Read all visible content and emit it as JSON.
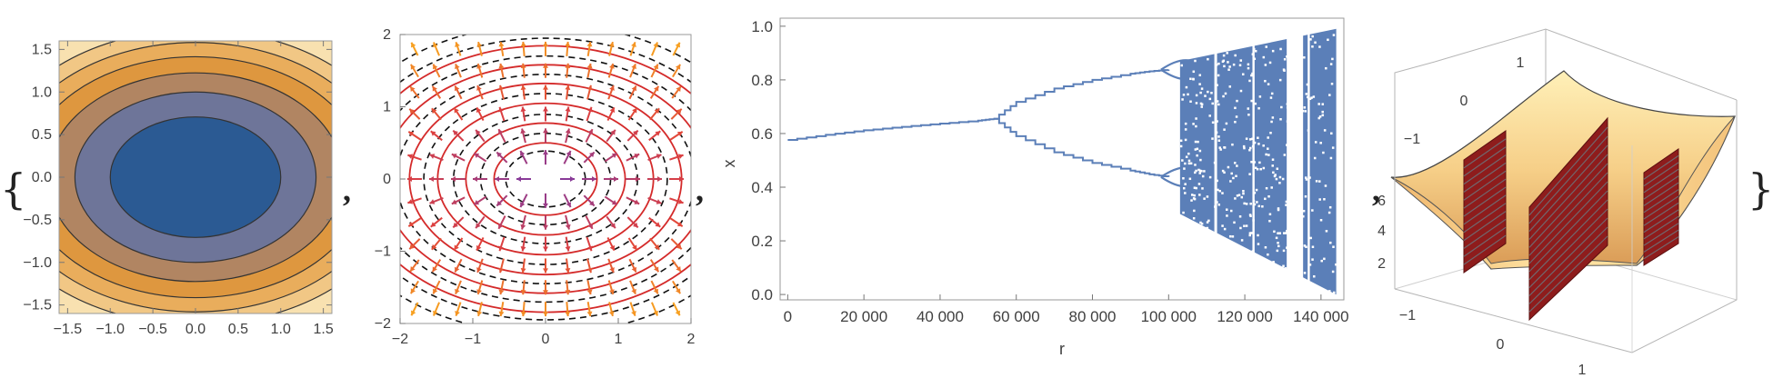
{
  "list_delimiters": {
    "open": "{",
    "close": "}",
    "separator": ","
  },
  "chart_data": [
    {
      "type": "contour",
      "function": "x^2 + 2 y^2",
      "xlim": [
        -1.6,
        1.6
      ],
      "ylim": [
        -1.6,
        1.6
      ],
      "xticks": [
        -1.5,
        -1.0,
        -0.5,
        0.0,
        0.5,
        1.0,
        1.5
      ],
      "yticks": [
        -1.5,
        -1.0,
        -0.5,
        0.0,
        0.5,
        1.0,
        1.5
      ],
      "xtick_labels": [
        "−1.5",
        "−1.0",
        "−0.5",
        "0.0",
        "0.5",
        "1.0",
        "1.5"
      ],
      "ytick_labels": [
        "−1.5",
        "−1.0",
        "−0.5",
        "0.0",
        "0.5",
        "1.0",
        "1.5"
      ],
      "levels": [
        1,
        2,
        3,
        4,
        5,
        6
      ],
      "fill_colors": [
        "#2b5a93",
        "#6e7599",
        "#b18562",
        "#de973f",
        "#e9ad5c",
        "#f1c785",
        "#f8e1b0"
      ],
      "line_color": "#333333"
    },
    {
      "type": "vector_field_with_contours",
      "field": "gradient of x^2 + 2 y^2",
      "xlim": [
        -2,
        2
      ],
      "ylim": [
        -2,
        2
      ],
      "xticks": [
        -2,
        -1,
        0,
        1,
        2
      ],
      "yticks": [
        -2,
        -1,
        0,
        1,
        2
      ],
      "xtick_labels": [
        "−2",
        "−1",
        "0",
        "1",
        "2"
      ],
      "ytick_labels": [
        "−2",
        "−1",
        "0",
        "1",
        "2"
      ],
      "solid_contour_levels": [
        0.5,
        1.2,
        2.2,
        3.5,
        5,
        6.8
      ],
      "dashed_contour_levels": [
        0.3,
        0.8,
        1.6,
        2.8,
        4.2,
        5.8,
        7.6,
        9.2
      ],
      "arrow_colors": {
        "low": "#7a3aa8",
        "mid": "#e0403c",
        "high": "#f7a020"
      },
      "contour_colors": {
        "solid": "#d42a2a",
        "dashed": "#111111"
      }
    },
    {
      "type": "scatter",
      "title": "",
      "xlabel": "r",
      "ylabel": "x",
      "xlim": [
        -2000,
        146000
      ],
      "ylim": [
        -0.02,
        1.03
      ],
      "xticks": [
        0,
        20000,
        40000,
        60000,
        80000,
        100000,
        120000,
        140000
      ],
      "xtick_labels": [
        "0",
        "20 000",
        "40 000",
        "60 000",
        "80 000",
        "100 000",
        "120 000",
        "140 000"
      ],
      "yticks": [
        0.0,
        0.2,
        0.4,
        0.6,
        0.8,
        1.0
      ],
      "ytick_labels": [
        "0.0",
        "0.2",
        "0.4",
        "0.6",
        "0.8",
        "1.0"
      ],
      "series": [
        {
          "color": "#5b7fb8",
          "branches": [
            {
              "r": [
                0,
                10000,
                20000,
                30000,
                40000,
                50000,
                54000
              ],
              "x": [
                0.576,
                0.595,
                0.612,
                0.625,
                0.637,
                0.648,
                0.655
              ]
            },
            {
              "r": [
                54000,
                60000,
                70000,
                80000,
                90000,
                95000,
                100000
              ],
              "x": [
                0.655,
                0.718,
                0.768,
                0.8,
                0.823,
                0.832,
                0.838
              ]
            },
            {
              "r": [
                54000,
                60000,
                70000,
                80000,
                90000,
                95000,
                100000
              ],
              "x": [
                0.655,
                0.59,
                0.53,
                0.49,
                0.462,
                0.448,
                0.438
              ]
            }
          ],
          "chaos_region": {
            "r_start": 103000,
            "r_end": 144000,
            "x_top": [
              0.87,
              0.99
            ],
            "x_bottom": [
              0.3,
              0.0
            ]
          }
        }
      ]
    },
    {
      "type": "surface3d",
      "surface": "bowl shaped surface",
      "xticks": [
        -1,
        0,
        1
      ],
      "xtick_labels": [
        "−1",
        "0",
        "1"
      ],
      "yticks": [
        -1,
        0,
        1
      ],
      "ytick_labels": [
        "−1",
        "0",
        "1"
      ],
      "zticks": [
        2,
        4,
        6
      ],
      "ztick_labels": [
        "2",
        "4",
        "6"
      ],
      "surface_color": "#f2c078",
      "slice_color": "#8e1c1c",
      "slices": 3
    }
  ]
}
